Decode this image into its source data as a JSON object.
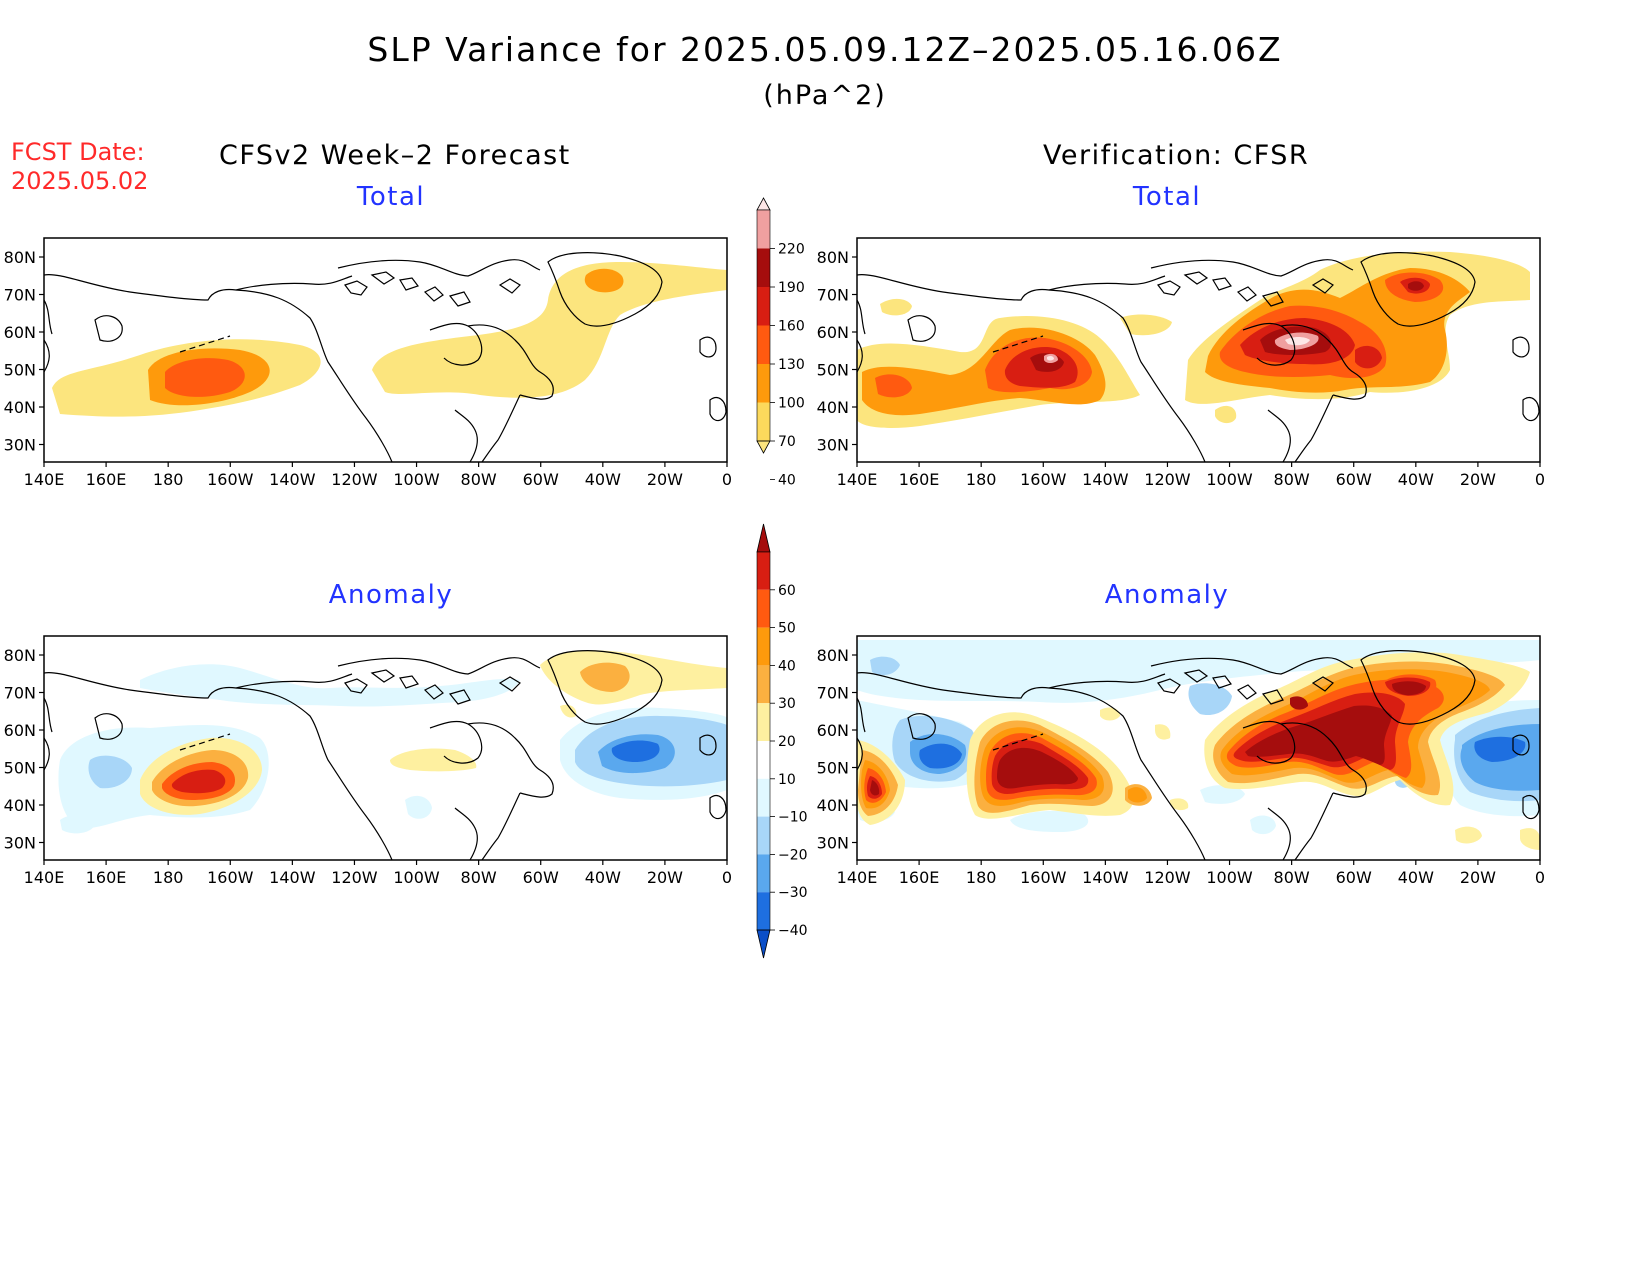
{
  "title": "SLP Variance for 2025.05.09.12Z–2025.05.16.06Z",
  "units": "(hPa^2)",
  "fcst_date": {
    "label": "FCST Date:",
    "value": "2025.05.02"
  },
  "columns": {
    "forecast": "CFSv2 Week–2 Forecast",
    "verification": "Verification: CFSR"
  },
  "panel_titles": {
    "total": "Total",
    "anomaly": "Anomaly"
  },
  "map_axes": {
    "lat_labels": [
      "80N",
      "70N",
      "60N",
      "50N",
      "40N",
      "30N"
    ],
    "lon_labels": [
      "140E",
      "160E",
      "180",
      "160W",
      "140W",
      "120W",
      "100W",
      "80W",
      "60W",
      "40W",
      "20W",
      "0"
    ]
  },
  "colorbar_total": {
    "levels": [
      "220",
      "190",
      "160",
      "130",
      "100",
      "70",
      "40"
    ],
    "colors": [
      "#fde7e7",
      "#f0a0a0",
      "#a50d0d",
      "#d81e12",
      "#ff5a10",
      "#fe9a0c",
      "#fcd95c",
      "#fce57e"
    ]
  },
  "colorbar_anomaly": {
    "levels": [
      "60",
      "50",
      "40",
      "30",
      "20",
      "10",
      "−10",
      "−20",
      "−30",
      "−40"
    ],
    "colors": [
      "#a50d0d",
      "#d81e12",
      "#ff5a10",
      "#fe9a0c",
      "#fbb040",
      "#fef0a0",
      "#ffffff",
      "#e0f8ff",
      "#a8d6f8",
      "#5aa8ee",
      "#1e6fe0",
      "#0b4fc8"
    ]
  },
  "chart_data": [
    {
      "type": "heatmap",
      "title": "Total",
      "subtitle": "CFSv2 Week–2 Forecast"
    },
    {
      "type": "heatmap",
      "title": "Total",
      "subtitle": "Verification: CFSR"
    },
    {
      "type": "heatmap",
      "title": "Anomaly",
      "subtitle": "CFSv2 Week–2 Forecast"
    },
    {
      "type": "heatmap",
      "title": "Anomaly",
      "subtitle": "Verification: CFSR"
    }
  ]
}
